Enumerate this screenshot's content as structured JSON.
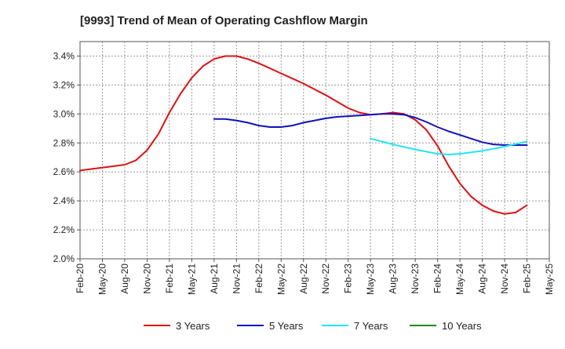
{
  "chart_data": {
    "type": "line",
    "title": "[9993]  Trend of Mean of Operating Cashflow Margin",
    "xlabel": "",
    "ylabel": "",
    "ylim": [
      2.0,
      3.5
    ],
    "y_ticks": [
      2.0,
      2.2,
      2.4,
      2.6,
      2.8,
      3.0,
      3.2,
      3.4
    ],
    "y_tick_labels": [
      "2.0%",
      "2.2%",
      "2.4%",
      "2.6%",
      "2.8%",
      "3.0%",
      "3.2%",
      "3.4%"
    ],
    "x_tick_labels": [
      "Feb-20",
      "May-20",
      "Aug-20",
      "Nov-20",
      "Feb-21",
      "May-21",
      "Aug-21",
      "Nov-21",
      "Feb-22",
      "May-22",
      "Aug-22",
      "Nov-22",
      "Feb-23",
      "May-23",
      "Aug-23",
      "Nov-23",
      "Feb-24",
      "May-24",
      "Aug-24",
      "Nov-24",
      "Feb-25",
      "May-25"
    ],
    "grid": true,
    "legend_position": "bottom",
    "series": [
      {
        "name": "3 Years",
        "color": "#dd1111",
        "points": [
          [
            0,
            2.61
          ],
          [
            1,
            2.63
          ],
          [
            2,
            2.65
          ],
          [
            2.5,
            2.68
          ],
          [
            3,
            2.75
          ],
          [
            3.5,
            2.86
          ],
          [
            4,
            3.01
          ],
          [
            4.5,
            3.14
          ],
          [
            5,
            3.25
          ],
          [
            5.5,
            3.33
          ],
          [
            6,
            3.38
          ],
          [
            6.5,
            3.4
          ],
          [
            7,
            3.4
          ],
          [
            7.5,
            3.38
          ],
          [
            8,
            3.35
          ],
          [
            9,
            3.28
          ],
          [
            10,
            3.21
          ],
          [
            11,
            3.13
          ],
          [
            12,
            3.04
          ],
          [
            12.5,
            3.01
          ],
          [
            13,
            2.995
          ],
          [
            13.5,
            3.0
          ],
          [
            14,
            3.01
          ],
          [
            14.5,
            3.0
          ],
          [
            15,
            2.96
          ],
          [
            15.5,
            2.89
          ],
          [
            16,
            2.78
          ],
          [
            16.5,
            2.64
          ],
          [
            17,
            2.52
          ],
          [
            17.5,
            2.43
          ],
          [
            18,
            2.37
          ],
          [
            18.5,
            2.33
          ],
          [
            19,
            2.31
          ],
          [
            19.5,
            2.32
          ],
          [
            20,
            2.37
          ]
        ]
      },
      {
        "name": "5 Years",
        "color": "#1111bb",
        "points": [
          [
            6,
            2.965
          ],
          [
            6.5,
            2.965
          ],
          [
            7,
            2.955
          ],
          [
            7.5,
            2.94
          ],
          [
            8,
            2.92
          ],
          [
            8.5,
            2.91
          ],
          [
            9,
            2.91
          ],
          [
            9.5,
            2.92
          ],
          [
            10,
            2.94
          ],
          [
            10.5,
            2.955
          ],
          [
            11,
            2.97
          ],
          [
            11.5,
            2.98
          ],
          [
            12,
            2.985
          ],
          [
            12.5,
            2.99
          ],
          [
            13,
            2.995
          ],
          [
            13.5,
            3.0
          ],
          [
            14,
            3.0
          ],
          [
            14.5,
            2.995
          ],
          [
            15,
            2.975
          ],
          [
            15.5,
            2.945
          ],
          [
            16,
            2.91
          ],
          [
            16.5,
            2.88
          ],
          [
            17,
            2.855
          ],
          [
            17.5,
            2.83
          ],
          [
            18,
            2.805
          ],
          [
            18.5,
            2.79
          ],
          [
            19,
            2.785
          ],
          [
            19.5,
            2.785
          ],
          [
            20,
            2.785
          ]
        ]
      },
      {
        "name": "7 Years",
        "color": "#22e5f0",
        "points": [
          [
            13,
            2.83
          ],
          [
            14,
            2.79
          ],
          [
            15,
            2.755
          ],
          [
            16,
            2.725
          ],
          [
            16.5,
            2.72
          ],
          [
            17,
            2.725
          ],
          [
            18,
            2.745
          ],
          [
            19,
            2.775
          ],
          [
            20,
            2.81
          ]
        ]
      },
      {
        "name": "10 Years",
        "color": "#228822",
        "points": []
      }
    ]
  }
}
